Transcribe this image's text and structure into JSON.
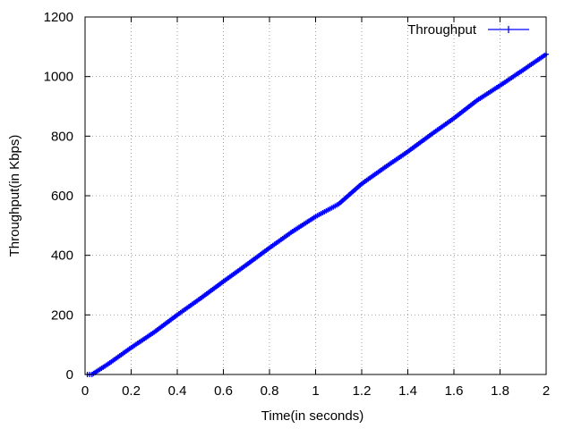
{
  "chart_data": {
    "type": "line",
    "title": "",
    "xlabel": "Time(in seconds)",
    "ylabel": "Throughput(in Kbps)",
    "xlim": [
      0,
      2
    ],
    "ylim": [
      0,
      1200
    ],
    "x_ticks": [
      "0",
      "0.2",
      "0.4",
      "0.6",
      "0.8",
      "1",
      "1.2",
      "1.4",
      "1.6",
      "1.8",
      "2"
    ],
    "y_ticks": [
      "0",
      "200",
      "400",
      "600",
      "800",
      "1000",
      "1200"
    ],
    "grid": true,
    "legend_position": "top-right",
    "series": [
      {
        "name": "Throughput",
        "color": "#0000ff",
        "marker": "plus",
        "x": [
          0.01,
          0.03,
          0.05,
          0.1,
          0.2,
          0.3,
          0.4,
          0.5,
          0.6,
          0.7,
          0.8,
          0.9,
          1.0,
          1.1,
          1.2,
          1.3,
          1.4,
          1.5,
          1.6,
          1.7,
          1.8,
          1.9,
          2.0
        ],
        "y": [
          0,
          0,
          10,
          35,
          90,
          142,
          200,
          255,
          312,
          368,
          425,
          480,
          530,
          572,
          640,
          695,
          748,
          805,
          860,
          920,
          970,
          1022,
          1075
        ]
      }
    ]
  }
}
